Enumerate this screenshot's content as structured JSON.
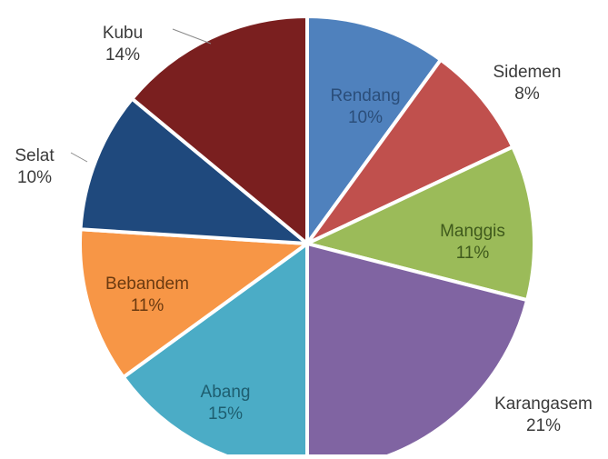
{
  "chart_data": {
    "type": "pie",
    "title": "",
    "start_angle_deg": 0,
    "direction": "clockwise",
    "legend": "none",
    "slices": [
      {
        "label": "Rendang",
        "value": 10,
        "display": "10%",
        "color": "#4F81BD",
        "label_placement": "inside",
        "label_color": "#2B4E7A"
      },
      {
        "label": "Sidemen",
        "value": 8,
        "display": "8%",
        "color": "#C0504D",
        "label_placement": "outside",
        "label_color": "#3A3A3A"
      },
      {
        "label": "Manggis",
        "value": 11,
        "display": "11%",
        "color": "#9BBB59",
        "label_placement": "inside",
        "label_color": "#3F5A1C"
      },
      {
        "label": "Karangasem",
        "value": 21,
        "display": "21%",
        "color": "#8064A2",
        "label_placement": "outside",
        "label_color": "#3A3A3A"
      },
      {
        "label": "Abang",
        "value": 15,
        "display": "15%",
        "color": "#4BACC6",
        "label_placement": "inside",
        "label_color": "#1E5E70"
      },
      {
        "label": "Bebandem",
        "value": 11,
        "display": "11%",
        "color": "#F79646",
        "label_placement": "inside",
        "label_color": "#6B3A10"
      },
      {
        "label": "Selat",
        "value": 10,
        "display": "10%",
        "color": "#1F497D",
        "label_placement": "outside",
        "label_color": "#3A3A3A"
      },
      {
        "label": "Kubu",
        "value": 14,
        "display": "14%",
        "color": "#7A1F1F",
        "label_placement": "outside",
        "label_color": "#3A3A3A"
      }
    ]
  }
}
